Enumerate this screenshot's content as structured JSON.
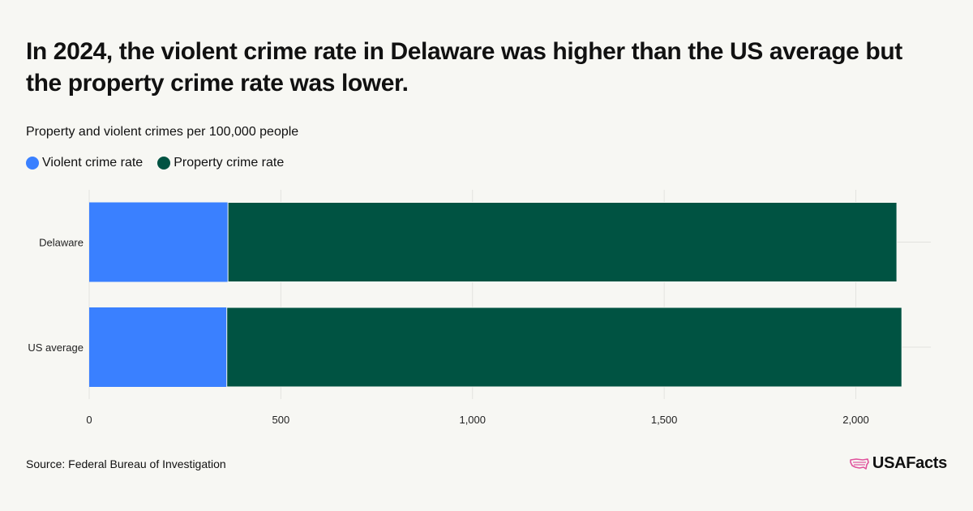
{
  "title": "In 2024, the violent crime rate in Delaware was higher than the US average but the property crime rate was lower.",
  "subtitle": "Property and violent crimes per 100,000 people",
  "source": "Source: Federal Bureau of Investigation",
  "brand": "USAFacts",
  "colors": {
    "violent": "#3a80ff",
    "property": "#005342",
    "grid": "#e3e3df",
    "brand_icon": "#e0529c"
  },
  "chart_data": {
    "type": "bar",
    "orientation": "horizontal",
    "stacked": true,
    "categories": [
      "Delaware",
      "US average"
    ],
    "series": [
      {
        "name": "Violent crime rate",
        "values": [
          362,
          359
        ]
      },
      {
        "name": "Property crime rate",
        "values": [
          1745,
          1761
        ]
      }
    ],
    "xlim": [
      0,
      2200
    ],
    "xticks": [
      0,
      500,
      1000,
      1500,
      2000
    ],
    "xtick_labels": [
      "0",
      "500",
      "1,000",
      "1,500",
      "2,000"
    ],
    "grid": true,
    "legend": "top-left"
  }
}
